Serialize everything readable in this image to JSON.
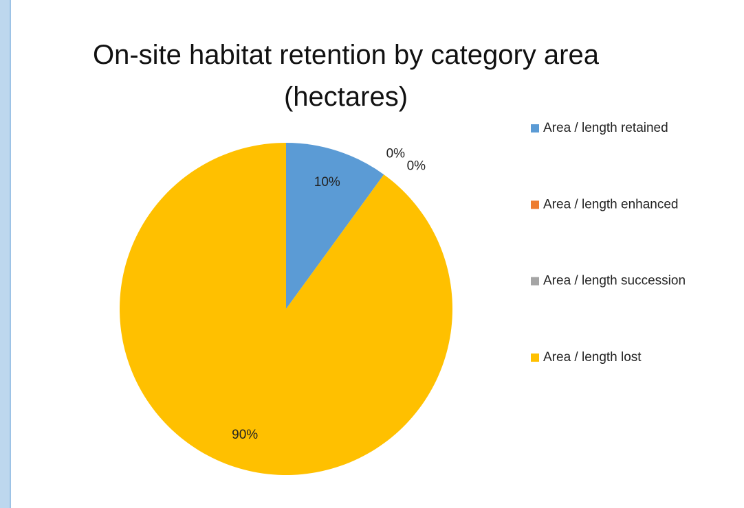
{
  "chart_data": {
    "type": "pie",
    "title": "On-site habitat retention by category area (hectares)",
    "categories": [
      "Area / length retained",
      "Area / length enhanced",
      "Area / length succession",
      "Area / length lost"
    ],
    "values": [
      10,
      0,
      0,
      90
    ],
    "value_labels": [
      "10%",
      "0%",
      "0%",
      "90%"
    ],
    "colors": [
      "#5b9bd5",
      "#ed7d31",
      "#a5a5a5",
      "#ffc000"
    ],
    "legend": "right"
  }
}
